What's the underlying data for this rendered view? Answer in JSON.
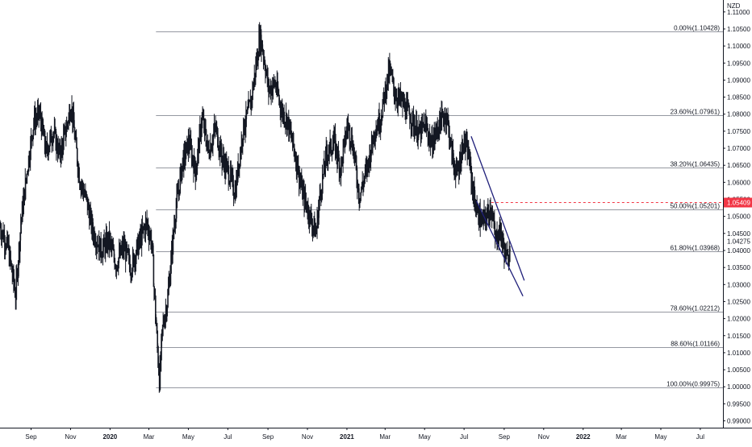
{
  "chart_data": {
    "type": "candlestick",
    "currency": "NZD",
    "y_ticks": [
      1.11,
      1.105,
      1.1,
      1.095,
      1.09,
      1.085,
      1.08,
      1.075,
      1.07,
      1.065,
      1.06,
      1.055,
      1.05,
      1.045,
      1.04,
      1.035,
      1.03,
      1.025,
      1.02,
      1.015,
      1.01,
      1.005,
      1.0,
      0.995,
      0.99
    ],
    "y_tick_labels": [
      "1.11000",
      "1.10500",
      "1.10000",
      "1.09500",
      "1.09000",
      "1.08500",
      "1.08000",
      "1.07500",
      "1.07000",
      "1.06500",
      "1.06000",
      "1.05500",
      "1.05000",
      "1.04500",
      "1.04000",
      "1.03500",
      "1.03000",
      "1.02500",
      "1.02000",
      "1.01500",
      "1.01000",
      "1.00500",
      "1.00000",
      "0.99500",
      "0.99000"
    ],
    "ylim": [
      0.988,
      1.1135
    ],
    "extra_price_label": {
      "value": 1.04275,
      "text": "1.04275"
    },
    "current_price": {
      "value": 1.05409,
      "text": "1.05409",
      "color": "#f23645"
    },
    "x_ticks": [
      {
        "label": "Sep",
        "date": "2019-09-01",
        "bold": false
      },
      {
        "label": "Nov",
        "date": "2019-11-01",
        "bold": false
      },
      {
        "label": "2020",
        "date": "2020-01-01",
        "bold": true
      },
      {
        "label": "Mar",
        "date": "2020-03-01",
        "bold": false
      },
      {
        "label": "May",
        "date": "2020-05-01",
        "bold": false
      },
      {
        "label": "Jul",
        "date": "2020-07-01",
        "bold": false
      },
      {
        "label": "Sep",
        "date": "2020-09-01",
        "bold": false
      },
      {
        "label": "Nov",
        "date": "2020-11-01",
        "bold": false
      },
      {
        "label": "2021",
        "date": "2021-01-01",
        "bold": true
      },
      {
        "label": "Mar",
        "date": "2021-03-01",
        "bold": false
      },
      {
        "label": "May",
        "date": "2021-05-01",
        "bold": false
      },
      {
        "label": "Jul",
        "date": "2021-07-01",
        "bold": false
      },
      {
        "label": "Sep",
        "date": "2021-09-01",
        "bold": false
      },
      {
        "label": "Nov",
        "date": "2021-11-01",
        "bold": false
      },
      {
        "label": "2022",
        "date": "2022-01-01",
        "bold": true
      },
      {
        "label": "Mar",
        "date": "2022-03-01",
        "bold": false
      },
      {
        "label": "May",
        "date": "2022-05-01",
        "bold": false
      },
      {
        "label": "Jul",
        "date": "2022-07-01",
        "bold": false
      }
    ],
    "xlim": [
      "2019-07-15",
      "2022-08-05"
    ],
    "fib_levels": [
      {
        "ratio": "0.00%",
        "price": 1.10428,
        "label": "0.00%(1.10428)"
      },
      {
        "ratio": "23.60%",
        "price": 1.07961,
        "label": "23.60%(1.07961)"
      },
      {
        "ratio": "38.20%",
        "price": 1.06435,
        "label": "38.20%(1.06435)"
      },
      {
        "ratio": "50.00%",
        "price": 1.05201,
        "label": "50.00%(1.05201)"
      },
      {
        "ratio": "61.80%",
        "price": 1.03968,
        "label": "61.80%(1.03968)"
      },
      {
        "ratio": "78.60%",
        "price": 1.02212,
        "label": "78.60%(1.02212)"
      },
      {
        "ratio": "88.60%",
        "price": 1.01166,
        "label": "88.60%(1.01166)"
      },
      {
        "ratio": "100.00%",
        "price": 0.99975,
        "label": "100.00%(0.99975)"
      }
    ],
    "fib_start_date": "2020-03-12",
    "channel": {
      "upper": [
        {
          "date": "2021-07-12",
          "value": 1.0735
        },
        {
          "date": "2021-10-02",
          "value": 1.0312
        }
      ],
      "lower": [
        {
          "date": "2021-07-20",
          "value": 1.0545
        },
        {
          "date": "2021-09-30",
          "value": 1.0266
        }
      ]
    },
    "price_path": [
      {
        "date": "2019-07-15",
        "value": 1.047
      },
      {
        "date": "2019-07-27",
        "value": 1.041
      },
      {
        "date": "2019-08-08",
        "value": 1.027
      },
      {
        "date": "2019-08-16",
        "value": 1.048
      },
      {
        "date": "2019-08-26",
        "value": 1.064
      },
      {
        "date": "2019-09-05",
        "value": 1.078
      },
      {
        "date": "2019-09-14",
        "value": 1.08
      },
      {
        "date": "2019-09-24",
        "value": 1.069
      },
      {
        "date": "2019-10-05",
        "value": 1.075
      },
      {
        "date": "2019-10-15",
        "value": 1.068
      },
      {
        "date": "2019-10-23",
        "value": 1.074
      },
      {
        "date": "2019-11-02",
        "value": 1.083
      },
      {
        "date": "2019-11-08",
        "value": 1.072
      },
      {
        "date": "2019-11-15",
        "value": 1.061
      },
      {
        "date": "2019-11-25",
        "value": 1.055
      },
      {
        "date": "2019-12-05",
        "value": 1.046
      },
      {
        "date": "2019-12-18",
        "value": 1.04
      },
      {
        "date": "2019-12-30",
        "value": 1.043
      },
      {
        "date": "2020-01-10",
        "value": 1.036
      },
      {
        "date": "2020-01-22",
        "value": 1.041
      },
      {
        "date": "2020-02-02",
        "value": 1.035
      },
      {
        "date": "2020-02-14",
        "value": 1.042
      },
      {
        "date": "2020-02-26",
        "value": 1.048
      },
      {
        "date": "2020-03-05",
        "value": 1.043
      },
      {
        "date": "2020-03-12",
        "value": 1.018
      },
      {
        "date": "2020-03-17",
        "value": 1.002
      },
      {
        "date": "2020-03-22",
        "value": 1.017
      },
      {
        "date": "2020-03-30",
        "value": 1.026
      },
      {
        "date": "2020-04-10",
        "value": 1.05
      },
      {
        "date": "2020-04-22",
        "value": 1.066
      },
      {
        "date": "2020-05-02",
        "value": 1.072
      },
      {
        "date": "2020-05-12",
        "value": 1.063
      },
      {
        "date": "2020-05-22",
        "value": 1.079
      },
      {
        "date": "2020-06-01",
        "value": 1.069
      },
      {
        "date": "2020-06-12",
        "value": 1.076
      },
      {
        "date": "2020-06-22",
        "value": 1.067
      },
      {
        "date": "2020-07-02",
        "value": 1.063
      },
      {
        "date": "2020-07-12",
        "value": 1.057
      },
      {
        "date": "2020-07-24",
        "value": 1.075
      },
      {
        "date": "2020-08-05",
        "value": 1.083
      },
      {
        "date": "2020-08-14",
        "value": 1.095
      },
      {
        "date": "2020-08-19",
        "value": 1.103
      },
      {
        "date": "2020-08-24",
        "value": 1.099
      },
      {
        "date": "2020-09-02",
        "value": 1.087
      },
      {
        "date": "2020-09-12",
        "value": 1.089
      },
      {
        "date": "2020-09-22",
        "value": 1.081
      },
      {
        "date": "2020-10-01",
        "value": 1.078
      },
      {
        "date": "2020-10-12",
        "value": 1.069
      },
      {
        "date": "2020-10-24",
        "value": 1.057
      },
      {
        "date": "2020-11-05",
        "value": 1.05
      },
      {
        "date": "2020-11-14",
        "value": 1.045
      },
      {
        "date": "2020-11-20",
        "value": 1.056
      },
      {
        "date": "2020-11-30",
        "value": 1.068
      },
      {
        "date": "2020-12-12",
        "value": 1.072
      },
      {
        "date": "2020-12-22",
        "value": 1.064
      },
      {
        "date": "2021-01-02",
        "value": 1.077
      },
      {
        "date": "2021-01-10",
        "value": 1.071
      },
      {
        "date": "2021-01-20",
        "value": 1.056
      },
      {
        "date": "2021-02-01",
        "value": 1.064
      },
      {
        "date": "2021-02-12",
        "value": 1.075
      },
      {
        "date": "2021-02-22",
        "value": 1.079
      },
      {
        "date": "2021-03-02",
        "value": 1.088
      },
      {
        "date": "2021-03-08",
        "value": 1.093
      },
      {
        "date": "2021-03-16",
        "value": 1.086
      },
      {
        "date": "2021-03-28",
        "value": 1.083
      },
      {
        "date": "2021-04-10",
        "value": 1.079
      },
      {
        "date": "2021-04-22",
        "value": 1.074
      },
      {
        "date": "2021-05-02",
        "value": 1.077
      },
      {
        "date": "2021-05-12",
        "value": 1.071
      },
      {
        "date": "2021-05-25",
        "value": 1.078
      },
      {
        "date": "2021-06-04",
        "value": 1.08
      },
      {
        "date": "2021-06-12",
        "value": 1.068
      },
      {
        "date": "2021-06-20",
        "value": 1.062
      },
      {
        "date": "2021-06-30",
        "value": 1.072
      },
      {
        "date": "2021-07-08",
        "value": 1.068
      },
      {
        "date": "2021-07-14",
        "value": 1.058
      },
      {
        "date": "2021-07-20",
        "value": 1.052
      },
      {
        "date": "2021-07-28",
        "value": 1.048
      },
      {
        "date": "2021-08-05",
        "value": 1.05
      },
      {
        "date": "2021-08-12",
        "value": 1.053
      },
      {
        "date": "2021-08-18",
        "value": 1.043
      },
      {
        "date": "2021-08-25",
        "value": 1.046
      },
      {
        "date": "2021-09-01",
        "value": 1.04
      },
      {
        "date": "2021-09-06",
        "value": 1.037
      },
      {
        "date": "2021-09-10",
        "value": 1.043
      }
    ]
  }
}
